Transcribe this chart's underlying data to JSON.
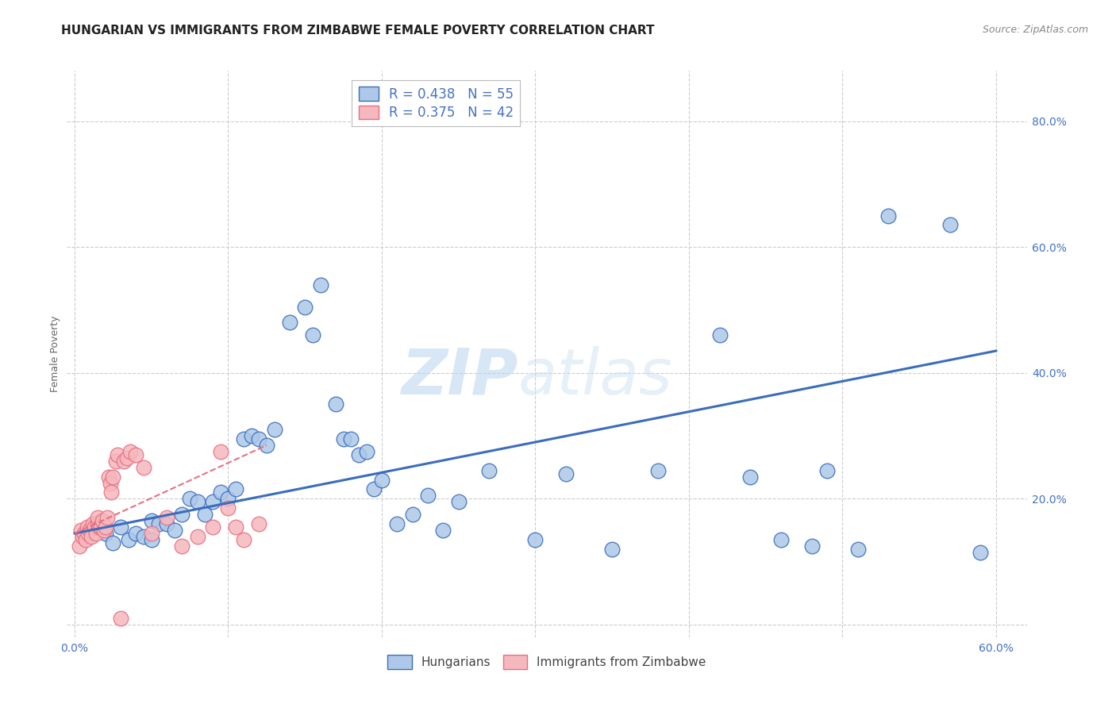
{
  "title": "HUNGARIAN VS IMMIGRANTS FROM ZIMBABWE FEMALE POVERTY CORRELATION CHART",
  "source": "Source: ZipAtlas.com",
  "ylabel": "Female Poverty",
  "xlim": [
    -0.005,
    0.62
  ],
  "ylim": [
    -0.02,
    0.88
  ],
  "xticks": [
    0.0,
    0.1,
    0.2,
    0.3,
    0.4,
    0.5,
    0.6
  ],
  "yticks": [
    0.0,
    0.2,
    0.4,
    0.6,
    0.8
  ],
  "background_color": "#ffffff",
  "watermark": "ZIPatlas",
  "blue_scatter_x": [
    0.015,
    0.02,
    0.025,
    0.03,
    0.035,
    0.04,
    0.045,
    0.05,
    0.05,
    0.055,
    0.06,
    0.065,
    0.07,
    0.075,
    0.08,
    0.085,
    0.09,
    0.095,
    0.1,
    0.105,
    0.11,
    0.115,
    0.12,
    0.125,
    0.13,
    0.14,
    0.15,
    0.155,
    0.16,
    0.17,
    0.175,
    0.18,
    0.185,
    0.19,
    0.195,
    0.2,
    0.21,
    0.22,
    0.23,
    0.24,
    0.25,
    0.27,
    0.3,
    0.32,
    0.35,
    0.38,
    0.42,
    0.44,
    0.46,
    0.48,
    0.49,
    0.51,
    0.53,
    0.57,
    0.59
  ],
  "blue_scatter_y": [
    0.155,
    0.145,
    0.13,
    0.155,
    0.135,
    0.145,
    0.14,
    0.165,
    0.135,
    0.16,
    0.16,
    0.15,
    0.175,
    0.2,
    0.195,
    0.175,
    0.195,
    0.21,
    0.2,
    0.215,
    0.295,
    0.3,
    0.295,
    0.285,
    0.31,
    0.48,
    0.505,
    0.46,
    0.54,
    0.35,
    0.295,
    0.295,
    0.27,
    0.275,
    0.215,
    0.23,
    0.16,
    0.175,
    0.205,
    0.15,
    0.195,
    0.245,
    0.135,
    0.24,
    0.12,
    0.245,
    0.46,
    0.235,
    0.135,
    0.125,
    0.245,
    0.12,
    0.65,
    0.635,
    0.115
  ],
  "pink_scatter_x": [
    0.003,
    0.004,
    0.005,
    0.006,
    0.007,
    0.008,
    0.009,
    0.01,
    0.011,
    0.012,
    0.013,
    0.014,
    0.015,
    0.015,
    0.016,
    0.017,
    0.018,
    0.019,
    0.02,
    0.021,
    0.022,
    0.023,
    0.024,
    0.025,
    0.027,
    0.028,
    0.03,
    0.032,
    0.034,
    0.036,
    0.04,
    0.045,
    0.05,
    0.06,
    0.07,
    0.08,
    0.09,
    0.095,
    0.1,
    0.105,
    0.11,
    0.12
  ],
  "pink_scatter_y": [
    0.125,
    0.15,
    0.14,
    0.145,
    0.135,
    0.155,
    0.145,
    0.15,
    0.14,
    0.16,
    0.155,
    0.145,
    0.16,
    0.17,
    0.155,
    0.155,
    0.165,
    0.15,
    0.155,
    0.17,
    0.235,
    0.225,
    0.21,
    0.235,
    0.26,
    0.27,
    0.01,
    0.26,
    0.265,
    0.275,
    0.27,
    0.25,
    0.145,
    0.17,
    0.125,
    0.14,
    0.155,
    0.275,
    0.185,
    0.155,
    0.135,
    0.16
  ],
  "blue_line_x": [
    0.0,
    0.6
  ],
  "blue_line_y": [
    0.145,
    0.435
  ],
  "pink_line_x": [
    0.0,
    0.125
  ],
  "pink_line_y": [
    0.145,
    0.285
  ],
  "blue_color": "#3b6dbf",
  "blue_fill": "#adc8e8",
  "pink_color": "#e87080",
  "pink_fill": "#f5b8be",
  "title_fontsize": 11,
  "axis_label_fontsize": 9,
  "tick_fontsize": 10,
  "legend_fontsize": 12
}
